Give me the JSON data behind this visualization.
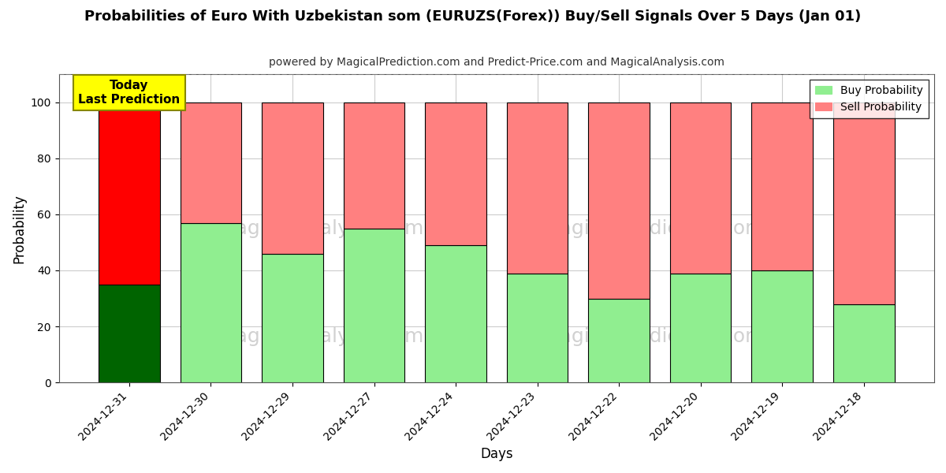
{
  "title": "Probabilities of Euro With Uzbekistan som (EURUZS(Forex)) Buy/Sell Signals Over 5 Days (Jan 01)",
  "subtitle": "powered by MagicalPrediction.com and Predict-Price.com and MagicalAnalysis.com",
  "xlabel": "Days",
  "ylabel": "Probability",
  "categories": [
    "2024-12-31",
    "2024-12-30",
    "2024-12-29",
    "2024-12-27",
    "2024-12-24",
    "2024-12-23",
    "2024-12-22",
    "2024-12-20",
    "2024-12-19",
    "2024-12-18"
  ],
  "buy_values": [
    35,
    57,
    46,
    55,
    49,
    39,
    30,
    39,
    40,
    28
  ],
  "sell_values": [
    65,
    43,
    54,
    45,
    51,
    61,
    70,
    61,
    60,
    72
  ],
  "buy_colors_special": [
    "#006400",
    "#90EE90",
    "#90EE90",
    "#90EE90",
    "#90EE90",
    "#90EE90",
    "#90EE90",
    "#90EE90",
    "#90EE90",
    "#90EE90"
  ],
  "sell_colors_special": [
    "#FF0000",
    "#FF8080",
    "#FF8080",
    "#FF8080",
    "#FF8080",
    "#FF8080",
    "#FF8080",
    "#FF8080",
    "#FF8080",
    "#FF8080"
  ],
  "buy_color_legend": "#90EE90",
  "sell_color_legend": "#FF8080",
  "today_label_text": "Today\nLast Prediction",
  "today_label_bg": "#FFFF00",
  "watermark_color": "#cccccc",
  "ylim": [
    0,
    110
  ],
  "yticks": [
    0,
    20,
    40,
    60,
    80,
    100
  ],
  "dashed_line_y": 110,
  "grid_color": "#cccccc",
  "bar_edge_color": "#000000",
  "bar_edge_width": 0.8,
  "figsize": [
    12,
    6
  ],
  "dpi": 100
}
